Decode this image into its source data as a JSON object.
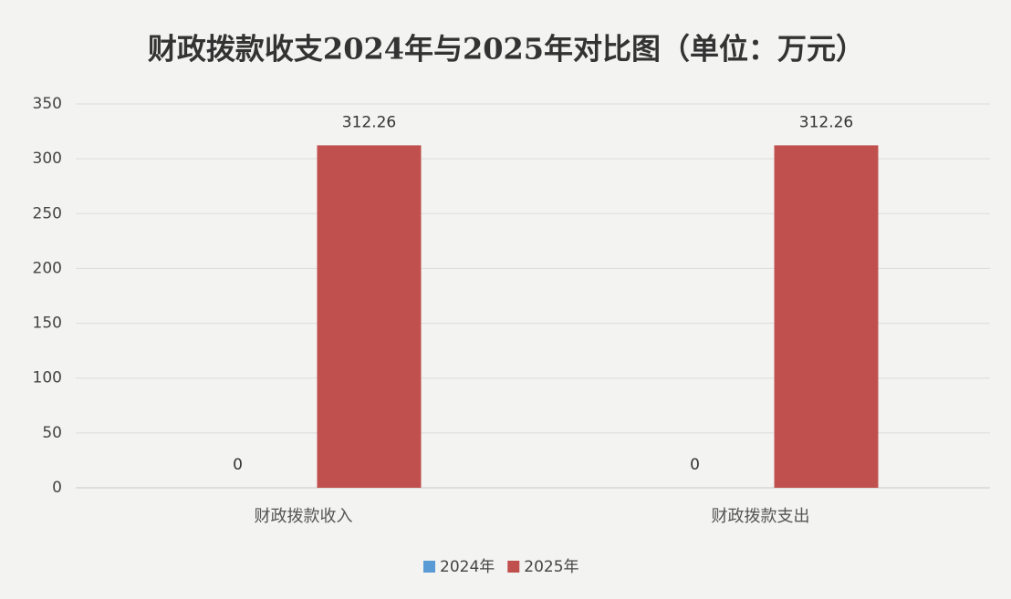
{
  "chart_data": {
    "type": "bar",
    "title": "财政拨款收支2024年与2025年对比图（单位：万元）",
    "categories": [
      "财政拨款收入",
      "财政拨款支出"
    ],
    "series": [
      {
        "name": "2024年",
        "color": "#5b9bd5",
        "values": [
          0,
          0
        ]
      },
      {
        "name": "2025年",
        "color": "#c0504d",
        "values": [
          312.26,
          312.26
        ]
      }
    ],
    "ylim": [
      0,
      350
    ],
    "yticks": [
      0,
      50,
      100,
      150,
      200,
      250,
      300,
      350
    ],
    "grid": true,
    "legend": "bottom"
  }
}
